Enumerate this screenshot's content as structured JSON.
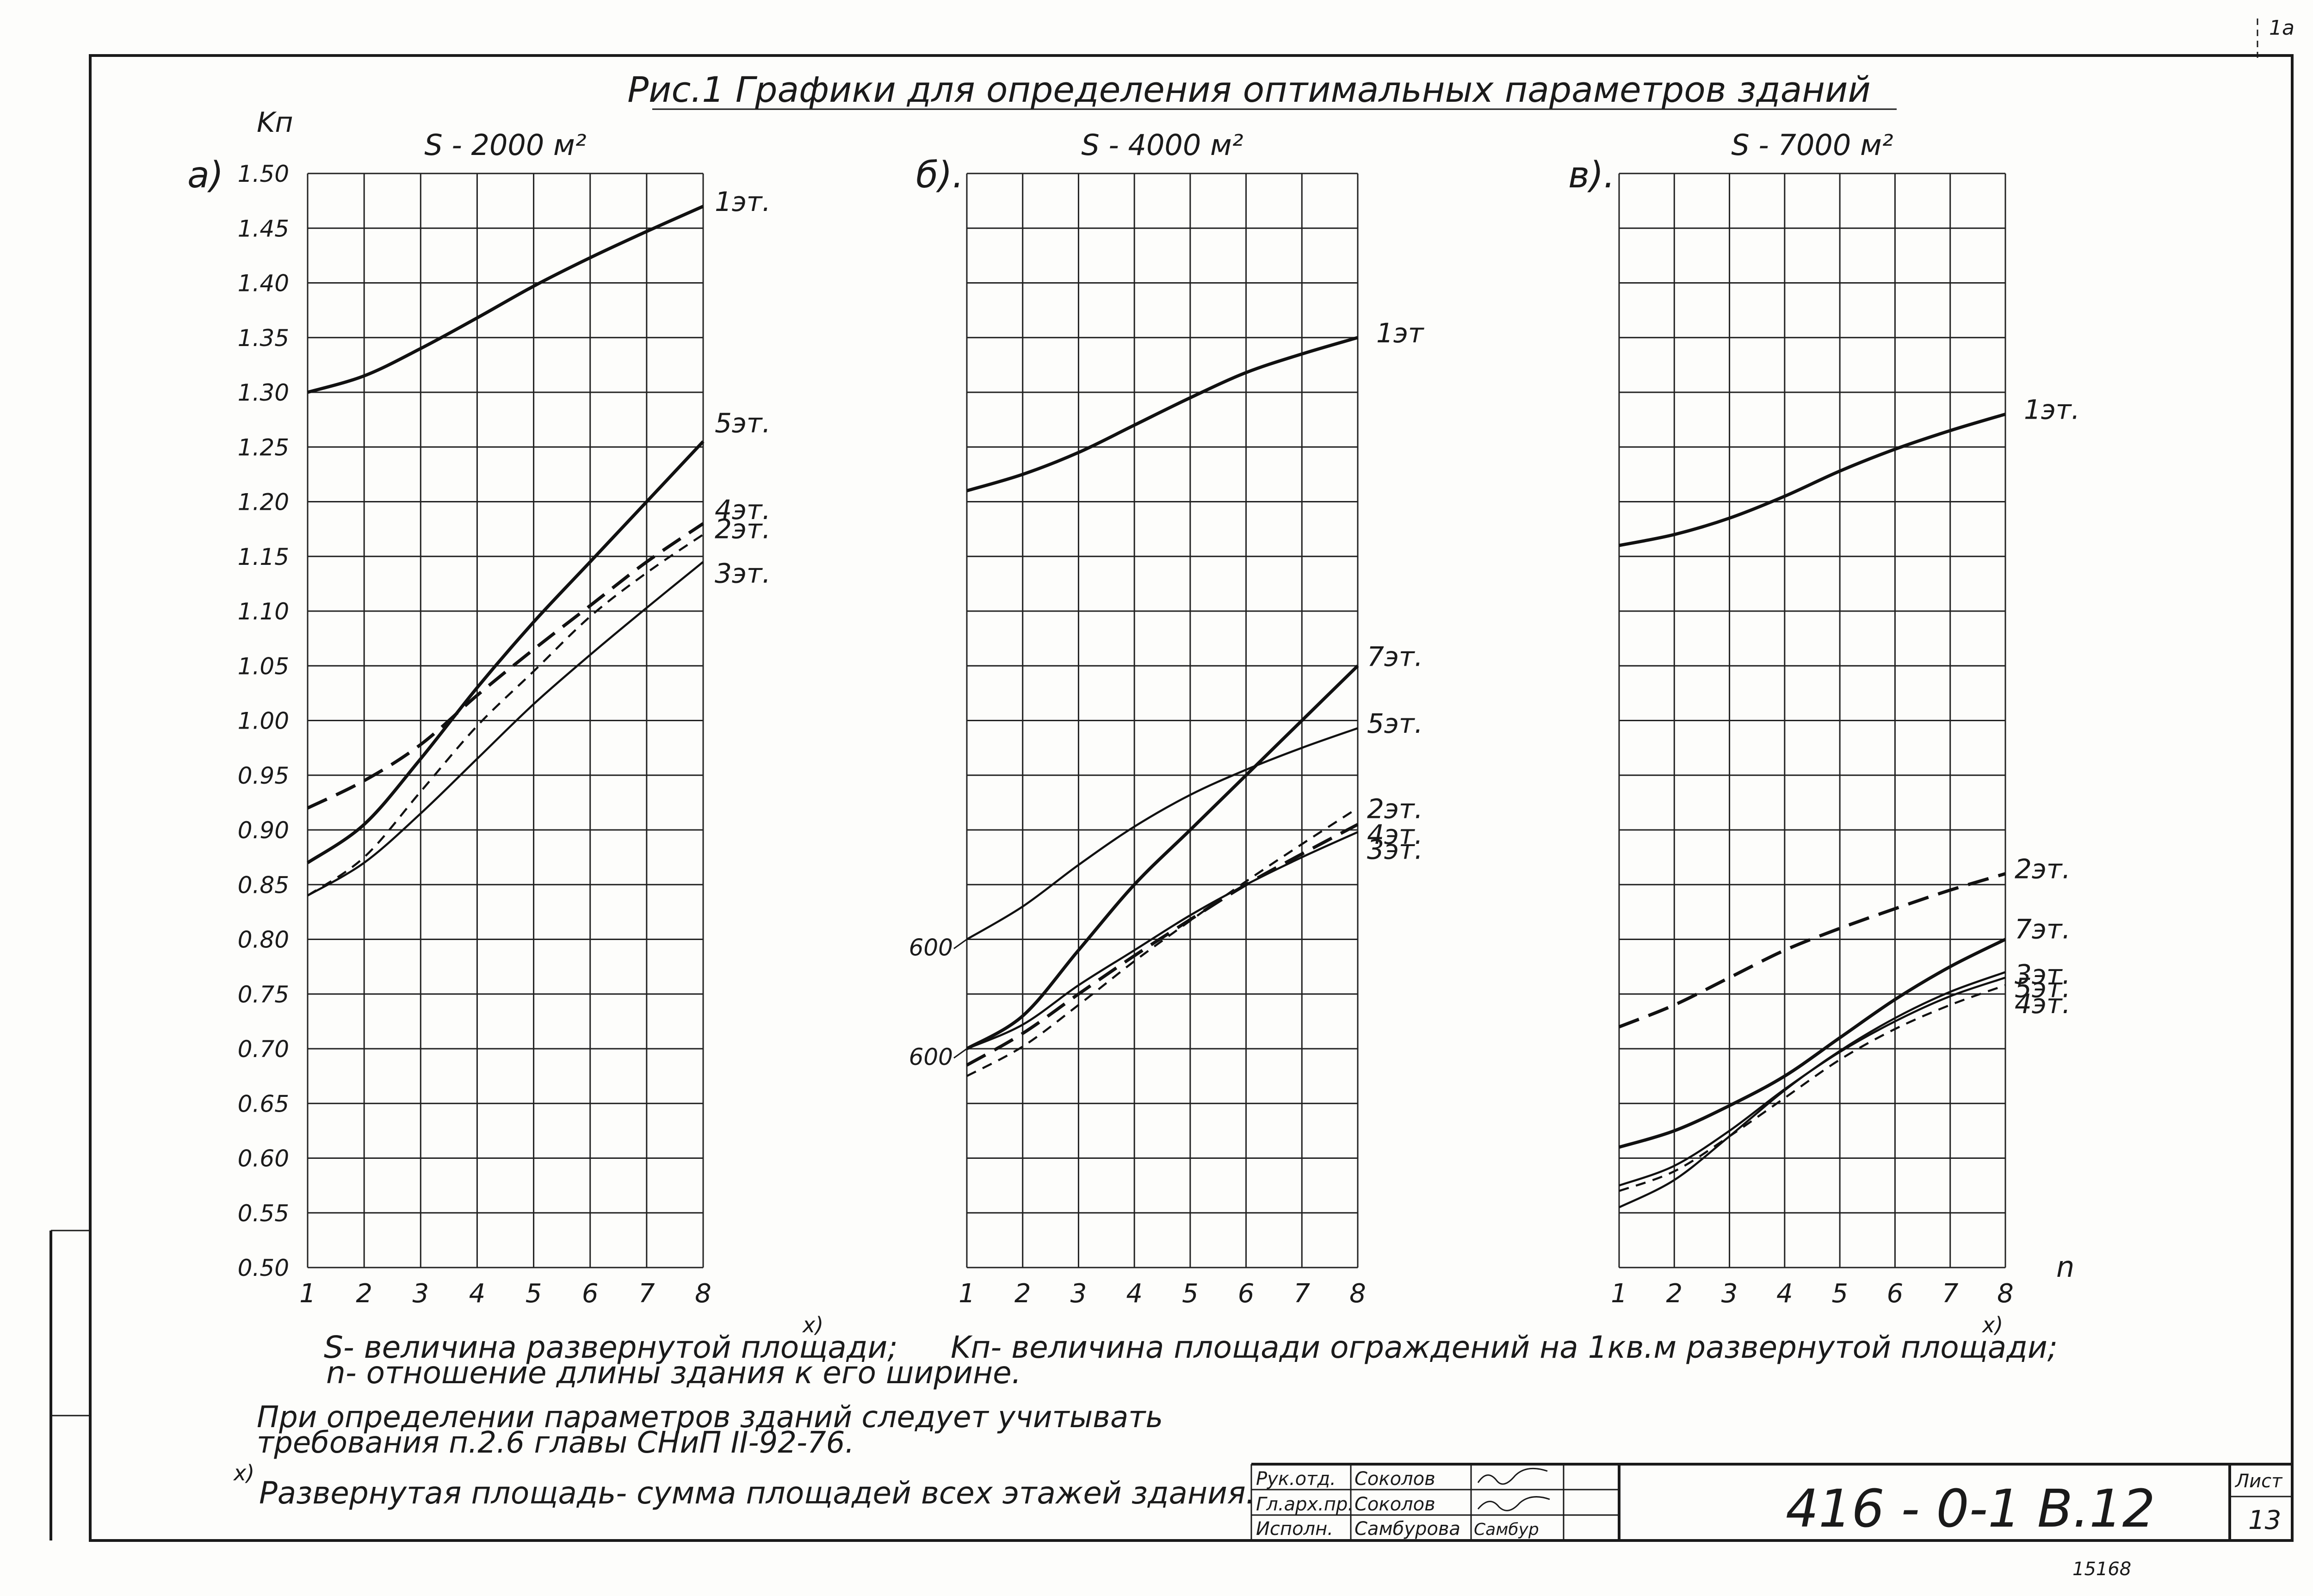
{
  "figure": {
    "title": "Рис.1   Графики   для   определения   оптимальных   параметров   зданий",
    "corner_mark": "1а",
    "stamp_small": "15168"
  },
  "notes": {
    "s_def": "S- величина развернутой площади;",
    "s_mark": "x)",
    "k_def": "Kп- величина площади ограждений на 1кв.м развернутой площади;",
    "k_mark": "x)",
    "n_def": "n- отношение длины здания к его ширине.",
    "req_line1": "При определении параметров зданий следует учитывать",
    "req_line2": "требования п.2.6 главы СНиП II-92-76.",
    "footnote_mark": "x)",
    "footnote_text": "Развернутая площадь- сумма площадей всех этажей здания."
  },
  "title_block": {
    "rows": [
      {
        "role": "Рук.отд.",
        "name": "Соколов"
      },
      {
        "role": "Гл.арх.пр.",
        "name": "Соколов"
      },
      {
        "role": "Исполн.",
        "name": "Самбурова",
        "sign": "Самбур"
      }
    ],
    "code": "416 - 0-1   В.12",
    "sheet_label": "Лист",
    "sheet_number": "13"
  },
  "chart_data": [
    {
      "type": "line",
      "panel_label": "а)",
      "title": "S - 2000 м²",
      "ylabel": "Kп",
      "xlabel": "",
      "x": [
        1,
        2,
        3,
        4,
        5,
        6,
        7,
        8
      ],
      "xlim": [
        1,
        8
      ],
      "ylim": [
        0.5,
        1.5
      ],
      "yticks": [
        "0.50",
        "0.55",
        "0.60",
        "0.65",
        "0.70",
        "0.75",
        "0.80",
        "0.85",
        "0.90",
        "0.95",
        "1.00",
        "1.05",
        "1.10",
        "1.15",
        "1.20",
        "1.25",
        "1.30",
        "1.35",
        "1.40",
        "1.45",
        "1.50"
      ],
      "grid": true,
      "series": [
        {
          "name": "1эт.",
          "style": "solid",
          "values": [
            1.3,
            1.315,
            1.34,
            1.368,
            1.397,
            1.423,
            1.447,
            1.47
          ]
        },
        {
          "name": "5эт.",
          "style": "solid",
          "values": [
            0.87,
            0.905,
            0.965,
            1.03,
            1.09,
            1.145,
            1.2,
            1.255
          ]
        },
        {
          "name": "4эт.",
          "style": "dash-long",
          "values": [
            0.92,
            0.945,
            0.978,
            1.023,
            1.065,
            1.105,
            1.145,
            1.18
          ]
        },
        {
          "name": "2эт.",
          "style": "dash-short",
          "values": [
            0.84,
            0.875,
            0.935,
            0.995,
            1.045,
            1.095,
            1.135,
            1.17
          ]
        },
        {
          "name": "3эт.",
          "style": "solid-thin",
          "values": [
            0.84,
            0.87,
            0.915,
            0.965,
            1.015,
            1.06,
            1.103,
            1.145
          ]
        }
      ]
    },
    {
      "type": "line",
      "panel_label": "б).",
      "title": "S - 4000 м²",
      "ylabel": "",
      "xlabel": "",
      "x": [
        1,
        2,
        3,
        4,
        5,
        6,
        7,
        8
      ],
      "xlim": [
        1,
        8
      ],
      "ylim": [
        0.5,
        1.5
      ],
      "tick_annotations": [
        "600",
        "600"
      ],
      "grid": true,
      "series": [
        {
          "name": "1эт",
          "style": "solid",
          "values": [
            1.21,
            1.225,
            1.245,
            1.27,
            1.295,
            1.318,
            1.335,
            1.35
          ]
        },
        {
          "name": "7эт.",
          "style": "solid",
          "values": [
            0.7,
            0.73,
            0.79,
            0.85,
            0.9,
            0.95,
            1.0,
            1.05
          ]
        },
        {
          "name": "5эт.",
          "style": "solid-thin",
          "values": [
            0.8,
            0.83,
            0.868,
            0.903,
            0.932,
            0.955,
            0.975,
            0.993
          ]
        },
        {
          "name": "2эт.",
          "style": "dash-short",
          "values": [
            0.675,
            0.702,
            0.74,
            0.78,
            0.817,
            0.853,
            0.887,
            0.92
          ]
        },
        {
          "name": "4эт.",
          "style": "dash-long",
          "values": [
            0.685,
            0.714,
            0.75,
            0.785,
            0.818,
            0.85,
            0.878,
            0.905
          ]
        },
        {
          "name": "3эт.",
          "style": "solid-thin",
          "values": [
            0.7,
            0.722,
            0.758,
            0.79,
            0.822,
            0.85,
            0.875,
            0.898
          ]
        }
      ]
    },
    {
      "type": "line",
      "panel_label": "в).",
      "title": "S - 7000 м²",
      "ylabel": "",
      "xlabel": "n",
      "x": [
        1,
        2,
        3,
        4,
        5,
        6,
        7,
        8
      ],
      "xlim": [
        1,
        8
      ],
      "ylim": [
        0.5,
        1.5
      ],
      "grid": true,
      "series": [
        {
          "name": "1эт.",
          "style": "solid",
          "values": [
            1.16,
            1.17,
            1.185,
            1.205,
            1.228,
            1.248,
            1.265,
            1.28
          ]
        },
        {
          "name": "2эт.",
          "style": "dash-long",
          "values": [
            0.72,
            0.74,
            0.765,
            0.79,
            0.81,
            0.828,
            0.845,
            0.86
          ]
        },
        {
          "name": "7эт.",
          "style": "solid",
          "values": [
            0.61,
            0.625,
            0.648,
            0.675,
            0.71,
            0.745,
            0.775,
            0.8
          ]
        },
        {
          "name": "3эт.",
          "style": "solid-thin",
          "values": [
            0.555,
            0.58,
            0.62,
            0.662,
            0.698,
            0.728,
            0.752,
            0.77
          ]
        },
        {
          "name": "5эт.",
          "style": "solid-thin",
          "values": [
            0.575,
            0.593,
            0.625,
            0.663,
            0.697,
            0.725,
            0.748,
            0.765
          ]
        },
        {
          "name": "4эт.",
          "style": "dash-short",
          "values": [
            0.57,
            0.588,
            0.62,
            0.655,
            0.69,
            0.718,
            0.74,
            0.758
          ]
        }
      ]
    }
  ]
}
